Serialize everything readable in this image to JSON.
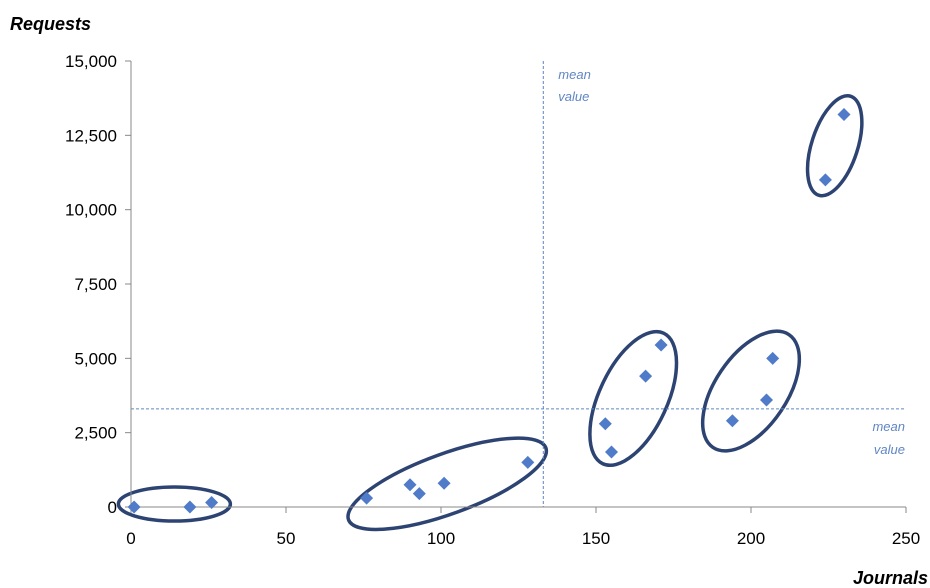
{
  "chart_data": {
    "type": "scatter",
    "xlabel": "Journals",
    "ylabel": "Requests",
    "xlim": [
      0,
      250
    ],
    "ylim": [
      0,
      15000
    ],
    "x_ticks": [
      0,
      50,
      100,
      150,
      200,
      250
    ],
    "x_tick_labels": [
      "0",
      "50",
      "100",
      "150",
      "200",
      "250"
    ],
    "y_ticks": [
      0,
      2500,
      5000,
      7500,
      10000,
      12500,
      15000
    ],
    "y_tick_labels": [
      "0",
      "2,500",
      "5,000",
      "7,500",
      "10,000",
      "12,500",
      "15,000"
    ],
    "grid": false,
    "marker": "diamond",
    "colors": {
      "points": "#4f7bc8",
      "mean_lines": "#5f86c3",
      "clusters": "#2d4473"
    },
    "points": [
      {
        "x": 1,
        "y": 0
      },
      {
        "x": 19,
        "y": 0
      },
      {
        "x": 26,
        "y": 150
      },
      {
        "x": 76,
        "y": 300
      },
      {
        "x": 90,
        "y": 750
      },
      {
        "x": 93,
        "y": 450
      },
      {
        "x": 101,
        "y": 800
      },
      {
        "x": 128,
        "y": 1500
      },
      {
        "x": 153,
        "y": 2800
      },
      {
        "x": 155,
        "y": 1850
      },
      {
        "x": 166,
        "y": 4400
      },
      {
        "x": 171,
        "y": 5450
      },
      {
        "x": 194,
        "y": 2900
      },
      {
        "x": 205,
        "y": 3600
      },
      {
        "x": 207,
        "y": 5000
      },
      {
        "x": 224,
        "y": 11000
      },
      {
        "x": 230,
        "y": 13200
      }
    ],
    "mean_lines": {
      "x": {
        "value": 133,
        "label": [
          "mean",
          "value"
        ]
      },
      "y": {
        "value": 3300,
        "label": [
          "mean",
          "value"
        ]
      }
    },
    "clusters": [
      {
        "cx": 14,
        "cy": 100,
        "rx": 4000,
        "ry": 36,
        "angle": 0
      },
      {
        "cx": 102,
        "cy": 780,
        "rx": 105,
        "ry": 30,
        "angle": -20
      },
      {
        "cx": 162,
        "cy": 3650,
        "rx": 72,
        "ry": 34,
        "angle": -65
      },
      {
        "cx": 200,
        "cy": 3900,
        "rx": 68,
        "ry": 36,
        "angle": -56
      },
      {
        "cx": 227,
        "cy": 12150,
        "rx": 52,
        "ry": 23,
        "angle": -72
      }
    ]
  }
}
